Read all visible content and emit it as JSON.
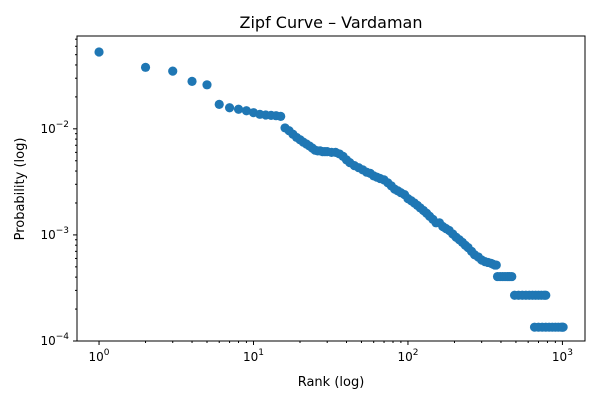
{
  "chart_data": {
    "type": "scatter",
    "title": "Zipf Curve – Vardaman",
    "xlabel": "Rank (log)",
    "ylabel": "Probability (log)",
    "xscale": "log",
    "yscale": "log",
    "xlim": [
      0.72,
      1400
    ],
    "ylim": [
      0.0001,
      0.075
    ],
    "x_ticks": [
      {
        "value": 1,
        "base": "10",
        "exp": "0"
      },
      {
        "value": 10,
        "base": "10",
        "exp": "1"
      },
      {
        "value": 100,
        "base": "10",
        "exp": "2"
      },
      {
        "value": 1000,
        "base": "10",
        "exp": "3"
      }
    ],
    "y_ticks": [
      {
        "value": 0.0001,
        "base": "10",
        "exp": "−4"
      },
      {
        "value": 0.001,
        "base": "10",
        "exp": "−3"
      },
      {
        "value": 0.01,
        "base": "10",
        "exp": "−2"
      }
    ],
    "grid": false,
    "legend": "none",
    "marker_color": "#1f77b4",
    "points": [
      [
        1,
        0.053
      ],
      [
        2,
        0.038
      ],
      [
        3,
        0.035
      ],
      [
        4,
        0.028
      ],
      [
        5,
        0.026
      ],
      [
        6,
        0.017
      ],
      [
        7,
        0.0158
      ],
      [
        8,
        0.0153
      ],
      [
        9,
        0.0148
      ],
      [
        10,
        0.0142
      ],
      [
        11,
        0.0137
      ],
      [
        12,
        0.0135
      ],
      [
        13,
        0.0134
      ],
      [
        14,
        0.0133
      ],
      [
        15,
        0.0131
      ],
      [
        16,
        0.0102
      ],
      [
        17,
        0.0096
      ],
      [
        18,
        0.0089
      ],
      [
        19,
        0.0083
      ],
      [
        20,
        0.0079
      ],
      [
        21,
        0.0075
      ],
      [
        22,
        0.0072
      ],
      [
        23,
        0.0069
      ],
      [
        24,
        0.0066
      ],
      [
        25,
        0.0063
      ],
      [
        26,
        0.0062
      ],
      [
        27,
        0.0062
      ],
      [
        28,
        0.0061
      ],
      [
        29,
        0.0061
      ],
      [
        30,
        0.0061
      ],
      [
        32,
        0.006
      ],
      [
        34,
        0.006
      ],
      [
        36,
        0.0058
      ],
      [
        38,
        0.0055
      ],
      [
        40,
        0.0051
      ],
      [
        42,
        0.0048
      ],
      [
        45,
        0.0045
      ],
      [
        48,
        0.0043
      ],
      [
        51,
        0.0041
      ],
      [
        54,
        0.0039
      ],
      [
        57,
        0.0038
      ],
      [
        60,
        0.0036
      ],
      [
        63,
        0.0035
      ],
      [
        66,
        0.0034
      ],
      [
        70,
        0.0033
      ],
      [
        74,
        0.0031
      ],
      [
        78,
        0.0029
      ],
      [
        82,
        0.0027
      ],
      [
        86,
        0.0026
      ],
      [
        90,
        0.0025
      ],
      [
        95,
        0.0024
      ],
      [
        100,
        0.0022
      ],
      [
        105,
        0.0021
      ],
      [
        110,
        0.002
      ],
      [
        115,
        0.0019
      ],
      [
        120,
        0.0018
      ],
      [
        126,
        0.0017
      ],
      [
        132,
        0.0016
      ],
      [
        138,
        0.0015
      ],
      [
        145,
        0.0014
      ],
      [
        152,
        0.0013
      ],
      [
        160,
        0.0013
      ],
      [
        168,
        0.0012
      ],
      [
        176,
        0.00115
      ],
      [
        185,
        0.0011
      ],
      [
        195,
        0.00102
      ],
      [
        205,
        0.00095
      ],
      [
        215,
        0.0009
      ],
      [
        225,
        0.00085
      ],
      [
        235,
        0.0008
      ],
      [
        245,
        0.00076
      ],
      [
        258,
        0.0007
      ],
      [
        270,
        0.00065
      ],
      [
        285,
        0.00062
      ],
      [
        300,
        0.00058
      ],
      [
        315,
        0.00056
      ],
      [
        330,
        0.00055
      ],
      [
        345,
        0.00054
      ],
      [
        355,
        0.00053
      ],
      [
        365,
        0.00052
      ],
      [
        373,
        0.00052
      ],
      [
        380,
        0.000405
      ],
      [
        395,
        0.000405
      ],
      [
        410,
        0.000405
      ],
      [
        425,
        0.000405
      ],
      [
        440,
        0.000405
      ],
      [
        455,
        0.000405
      ],
      [
        470,
        0.000405
      ],
      [
        490,
        0.00027
      ],
      [
        520,
        0.00027
      ],
      [
        550,
        0.00027
      ],
      [
        580,
        0.00027
      ],
      [
        610,
        0.00027
      ],
      [
        640,
        0.00027
      ],
      [
        670,
        0.00027
      ],
      [
        700,
        0.00027
      ],
      [
        730,
        0.00027
      ],
      [
        760,
        0.00027
      ],
      [
        780,
        0.00027
      ],
      [
        660,
        0.000135
      ],
      [
        700,
        0.000135
      ],
      [
        740,
        0.000135
      ],
      [
        780,
        0.000135
      ],
      [
        820,
        0.000135
      ],
      [
        860,
        0.000135
      ],
      [
        900,
        0.000135
      ],
      [
        940,
        0.000135
      ],
      [
        980,
        0.000135
      ],
      [
        1000,
        0.000135
      ],
      [
        1010,
        0.000135
      ]
    ]
  }
}
